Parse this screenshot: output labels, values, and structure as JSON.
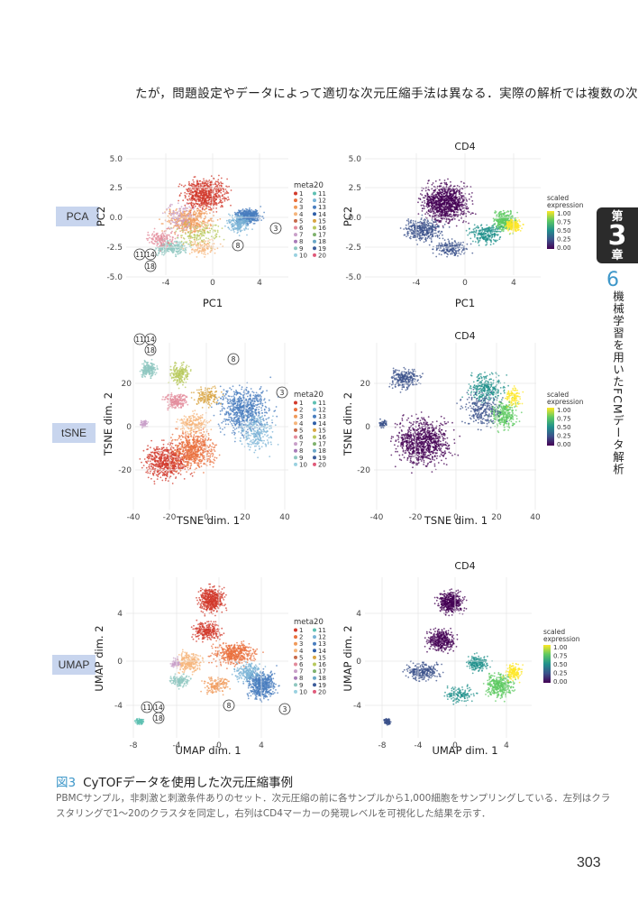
{
  "top_text": "たが，問題設定やデータによって適切な次元圧縮手法は異なる．実際の解析では複数の次",
  "chapter": {
    "dai": "第",
    "num": "3",
    "sho": "章"
  },
  "section": {
    "num": "6",
    "title": "機械学習を用いたFCMデータ解析"
  },
  "method_labels": {
    "pca": "PCA",
    "tsne": "tSNE",
    "umap": "UMAP"
  },
  "panels": {
    "pca_left": {
      "xlabel": "PC1",
      "ylabel": "PC2",
      "xticks": [
        "-4",
        "0",
        "4"
      ],
      "yticks": [
        "5.0",
        "2.5",
        "0.0",
        "-2.5",
        "-5.0"
      ]
    },
    "pca_right": {
      "title": "CD4",
      "xlabel": "PC1",
      "ylabel": "PC2",
      "xticks": [
        "-4",
        "0",
        "4"
      ],
      "yticks": [
        "5.0",
        "2.5",
        "0.0",
        "-2.5",
        "-5.0"
      ]
    },
    "tsne_left": {
      "xlabel": "TSNE dim. 1",
      "ylabel": "TSNE dim. 2",
      "xticks": [
        "-40",
        "-20",
        "0",
        "20",
        "40"
      ],
      "yticks": [
        "20",
        "0",
        "-20"
      ]
    },
    "tsne_right": {
      "title": "CD4",
      "xlabel": "TSNE dim. 1",
      "ylabel": "TSNE dim. 2",
      "xticks": [
        "-40",
        "-20",
        "0",
        "20",
        "40"
      ],
      "yticks": [
        "20",
        "0",
        "-20"
      ]
    },
    "umap_left": {
      "xlabel": "UMAP dim. 1",
      "ylabel": "UMAP dim. 2",
      "xticks": [
        "-8",
        "-4",
        "0",
        "4"
      ],
      "yticks": [
        "4",
        "0",
        "-4"
      ]
    },
    "umap_right": {
      "title": "CD4",
      "xlabel": "UMAP dim. 1",
      "ylabel": "UMAP dim. 2",
      "xticks": [
        "-8",
        "-4",
        "0",
        "4"
      ],
      "yticks": [
        "4",
        "0",
        "-4"
      ]
    }
  },
  "cluster_legend": {
    "title": "meta20",
    "items": [
      "1",
      "2",
      "3",
      "4",
      "5",
      "6",
      "7",
      "8",
      "9",
      "10",
      "11",
      "12",
      "13",
      "14",
      "15",
      "16",
      "17",
      "18",
      "19",
      "20"
    ]
  },
  "expression_legend": {
    "title_line1": "scaled",
    "title_line2": "expression",
    "ticks": [
      "1.00",
      "0.75",
      "0.50",
      "0.25",
      "0.00"
    ]
  },
  "callouts": {
    "c3": "3",
    "c8": "8",
    "c11": "11",
    "c14": "14",
    "c18": "18"
  },
  "colors": {
    "cluster_palette": [
      "#d23a2c",
      "#e9703d",
      "#f09a5a",
      "#f5b57c",
      "#c76a4a",
      "#e38b9b",
      "#c9a0c9",
      "#a87bb8",
      "#8fc7c0",
      "#9ad1e0",
      "#5ec0b2",
      "#79b3d6",
      "#4a7ebf",
      "#2e5ea8",
      "#d9a441",
      "#b8c95e",
      "#7fb26d",
      "#6aa7c7",
      "#3b5b9a",
      "#e05a7a"
    ],
    "viridis": [
      "#fde725",
      "#5ec962",
      "#21918c",
      "#3b528b",
      "#440154"
    ],
    "accent_blue": "#3e97c9",
    "label_bg": "#c8d5ee"
  },
  "caption": {
    "fig_label": "図3",
    "title": "CyTOFデータを使用した次元圧縮事例",
    "body": "PBMCサンプル，非刺激と刺激条件ありのセット．次元圧縮の前に各サンプルから1,000細胞をサンプリングしている．左列はクラスタリングで1～20のクラスタを同定し，右列はCD4マーカーの発現レベルを可視化した結果を示す．"
  },
  "page_number": "303"
}
